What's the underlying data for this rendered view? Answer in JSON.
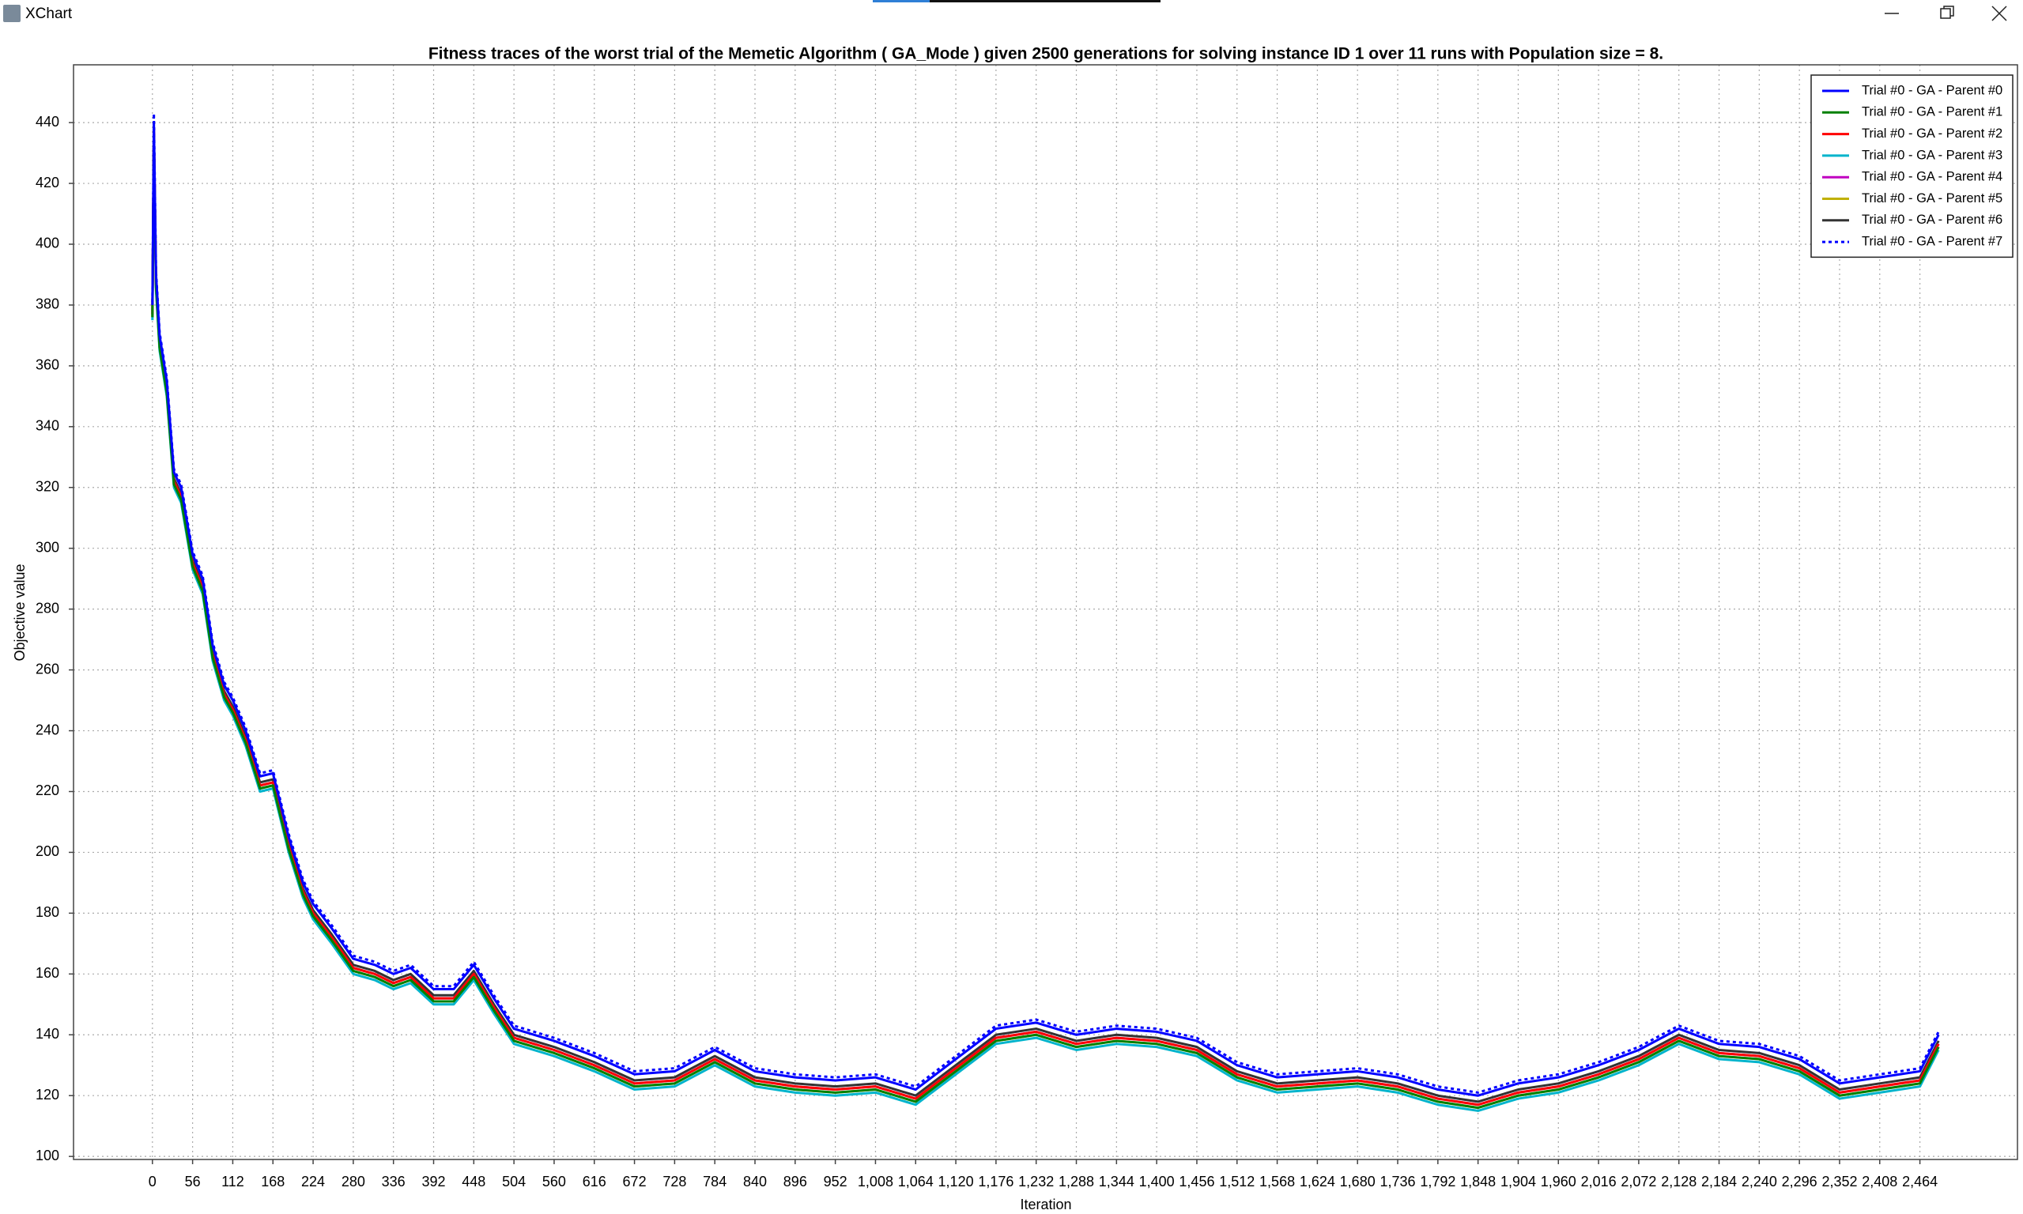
{
  "window": {
    "title": "XChart"
  },
  "chart_data": {
    "type": "line",
    "title": "Fitness traces of the worst trial of the Memetic Algorithm ( GA_Mode ) given 2500 generations for solving instance ID 1 over 11 runs with Population size = 8.",
    "x_label": "Iteration",
    "y_label": "Objective value",
    "grid": true,
    "legend": "top-right",
    "xlim": [
      -110,
      2600
    ],
    "ylim": [
      99,
      459
    ],
    "yticks": [
      100,
      120,
      140,
      160,
      180,
      200,
      220,
      240,
      260,
      280,
      300,
      320,
      340,
      360,
      380,
      400,
      420,
      440
    ],
    "xticks": [
      0,
      56,
      112,
      168,
      224,
      280,
      336,
      392,
      448,
      504,
      560,
      616,
      672,
      728,
      784,
      840,
      896,
      952,
      {
        "value": 1008,
        "label": "1,008"
      },
      {
        "value": 1064,
        "label": "1,064"
      },
      {
        "value": 1120,
        "label": "1,120"
      },
      {
        "value": 1176,
        "label": "1,176"
      },
      {
        "value": 1232,
        "label": "1,232"
      },
      {
        "value": 1288,
        "label": "1,288"
      },
      {
        "value": 1344,
        "label": "1,344"
      },
      {
        "value": 1400,
        "label": "1,400"
      },
      {
        "value": 1456,
        "label": "1,456"
      },
      {
        "value": 1512,
        "label": "1,512"
      },
      {
        "value": 1568,
        "label": "1,568"
      },
      {
        "value": 1624,
        "label": "1,624"
      },
      {
        "value": 1680,
        "label": "1,680"
      },
      {
        "value": 1736,
        "label": "1,736"
      },
      {
        "value": 1792,
        "label": "1,792"
      },
      {
        "value": 1848,
        "label": "1,848"
      },
      {
        "value": 1904,
        "label": "1,904"
      },
      {
        "value": 1960,
        "label": "1,960"
      },
      {
        "value": 2016,
        "label": "2,016"
      },
      {
        "value": 2072,
        "label": "2,072"
      },
      {
        "value": 2128,
        "label": "2,128"
      },
      {
        "value": 2184,
        "label": "2,184"
      },
      {
        "value": 2240,
        "label": "2,240"
      },
      {
        "value": 2296,
        "label": "2,296"
      },
      {
        "value": 2352,
        "label": "2,352"
      },
      {
        "value": 2408,
        "label": "2,408"
      },
      {
        "value": 2464,
        "label": "2,464"
      }
    ],
    "x": [
      0,
      2,
      5,
      10,
      20,
      30,
      40,
      56,
      70,
      84,
      100,
      112,
      130,
      150,
      168,
      190,
      210,
      224,
      250,
      280,
      310,
      336,
      360,
      392,
      420,
      448,
      476,
      504,
      560,
      616,
      672,
      728,
      784,
      840,
      896,
      952,
      1008,
      1064,
      1120,
      1176,
      1232,
      1288,
      1344,
      1400,
      1456,
      1512,
      1568,
      1624,
      1680,
      1736,
      1792,
      1848,
      1904,
      1960,
      2016,
      2072,
      2128,
      2184,
      2240,
      2296,
      2352,
      2408,
      2464,
      2490
    ],
    "series": [
      {
        "name": "Trial #0 - GA - Parent #0",
        "color": "#0000ff",
        "line_style": "solid",
        "values": [
          380,
          440,
          390,
          370,
          355,
          325,
          320,
          298,
          290,
          268,
          255,
          250,
          240,
          225,
          226,
          205,
          190,
          183,
          175,
          165,
          163,
          160,
          162,
          155,
          155,
          163,
          152,
          142,
          138,
          133,
          127,
          128,
          135,
          128,
          126,
          125,
          126,
          122,
          132,
          142,
          144,
          140,
          142,
          141,
          138,
          130,
          126,
          127,
          128,
          126,
          122,
          120,
          124,
          126,
          130,
          135,
          142,
          137,
          136,
          132,
          124,
          126,
          128,
          140
        ]
      },
      {
        "name": "Trial #0 - GA - Parent #1",
        "color": "#008000",
        "line_style": "solid",
        "values": [
          376,
          436,
          386,
          366,
          351,
          321,
          316,
          294,
          286,
          264,
          251,
          246,
          236,
          221,
          222,
          201,
          186,
          179,
          171,
          161,
          159,
          156,
          158,
          151,
          151,
          159,
          148,
          138,
          134,
          129,
          123,
          124,
          131,
          124,
          122,
          121,
          122,
          118,
          128,
          138,
          140,
          136,
          138,
          137,
          134,
          126,
          122,
          123,
          124,
          122,
          118,
          116,
          120,
          122,
          126,
          131,
          138,
          133,
          132,
          128,
          120,
          122,
          124,
          136
        ]
      },
      {
        "name": "Trial #0 - GA - Parent #2",
        "color": "#ff0000",
        "line_style": "solid",
        "values": [
          377,
          437,
          387,
          367,
          352,
          322,
          317,
          295,
          287,
          265,
          252,
          247,
          237,
          222,
          223,
          202,
          187,
          180,
          172,
          162,
          160,
          157,
          159,
          152,
          152,
          160,
          149,
          139,
          135,
          130,
          124,
          125,
          132,
          125,
          123,
          122,
          123,
          119,
          129,
          139,
          141,
          137,
          139,
          138,
          135,
          127,
          123,
          124,
          125,
          123,
          119,
          117,
          121,
          123,
          127,
          132,
          139,
          134,
          133,
          129,
          121,
          123,
          125,
          137
        ]
      },
      {
        "name": "Trial #0 - GA - Parent #3",
        "color": "#00b4cc",
        "line_style": "solid",
        "values": [
          375,
          435,
          385,
          365,
          350,
          320,
          315,
          293,
          285,
          263,
          250,
          245,
          235,
          220,
          221,
          200,
          185,
          178,
          170,
          160,
          158,
          155,
          157,
          150,
          150,
          158,
          147,
          137,
          133,
          128,
          122,
          123,
          130,
          123,
          121,
          120,
          121,
          117,
          127,
          137,
          139,
          135,
          137,
          136,
          133,
          125,
          121,
          122,
          123,
          121,
          117,
          115,
          119,
          121,
          125,
          130,
          137,
          132,
          131,
          127,
          119,
          121,
          123,
          135
        ]
      },
      {
        "name": "Trial #0 - GA - Parent #4",
        "color": "#c000c0",
        "line_style": "solid",
        "values": [
          377,
          437,
          387,
          367,
          352,
          322,
          317,
          295,
          287,
          265,
          252,
          247,
          237,
          222,
          223,
          202,
          187,
          180,
          172,
          162,
          160,
          157,
          159,
          152,
          152,
          160,
          149,
          139,
          135,
          130,
          124,
          125,
          132,
          125,
          123,
          122,
          123,
          119,
          129,
          139,
          141,
          137,
          139,
          138,
          135,
          127,
          123,
          124,
          125,
          123,
          119,
          117,
          121,
          123,
          127,
          132,
          139,
          134,
          133,
          129,
          121,
          123,
          125,
          137
        ]
      },
      {
        "name": "Trial #0 - GA - Parent #5",
        "color": "#c0b000",
        "line_style": "solid",
        "values": [
          376,
          436,
          386,
          366,
          351,
          321,
          316,
          294,
          286,
          264,
          251,
          246,
          236,
          221,
          222,
          201,
          186,
          179,
          171,
          161,
          159,
          156,
          158,
          151,
          151,
          159,
          148,
          138,
          134,
          129,
          123,
          124,
          131,
          124,
          122,
          121,
          122,
          118,
          128,
          138,
          140,
          136,
          138,
          137,
          134,
          126,
          122,
          123,
          124,
          122,
          118,
          116,
          120,
          122,
          126,
          131,
          138,
          133,
          132,
          128,
          120,
          122,
          124,
          136
        ]
      },
      {
        "name": "Trial #0 - GA - Parent #6",
        "color": "#333333",
        "line_style": "solid",
        "values": [
          378,
          438,
          388,
          368,
          353,
          323,
          318,
          296,
          288,
          266,
          253,
          248,
          238,
          223,
          224,
          203,
          188,
          181,
          173,
          163,
          161,
          158,
          160,
          153,
          153,
          161,
          150,
          140,
          136,
          131,
          125,
          126,
          133,
          126,
          124,
          123,
          124,
          120,
          130,
          140,
          142,
          138,
          140,
          139,
          136,
          128,
          124,
          125,
          126,
          124,
          120,
          118,
          122,
          124,
          128,
          133,
          140,
          135,
          134,
          130,
          122,
          124,
          126,
          138
        ]
      },
      {
        "name": "Trial #0 - GA - Parent #7",
        "color": "#0000ff",
        "line_style": "dotted",
        "values": [
          381,
          443,
          391,
          371,
          356,
          326,
          321,
          299,
          291,
          269,
          256,
          251,
          241,
          226,
          227,
          206,
          191,
          184,
          176,
          166,
          164,
          161,
          163,
          156,
          156,
          164,
          153,
          143,
          139,
          134,
          128,
          129,
          136,
          129,
          127,
          126,
          127,
          123,
          133,
          143,
          145,
          141,
          143,
          142,
          139,
          131,
          127,
          128,
          129,
          127,
          123,
          121,
          125,
          127,
          131,
          136,
          143,
          138,
          137,
          133,
          125,
          127,
          129,
          141
        ]
      }
    ]
  }
}
